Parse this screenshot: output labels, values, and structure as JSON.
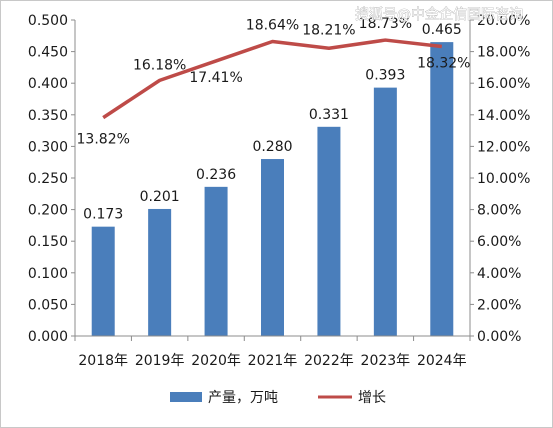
{
  "chart_data": {
    "type": "bar",
    "categories": [
      "2018年",
      "2019年",
      "2020年",
      "2021年",
      "2022年",
      "2023年",
      "2024年"
    ],
    "series": [
      {
        "name": "产量，万吨",
        "type": "bar",
        "axis": "left",
        "color": "#4a7ebb",
        "values": [
          0.173,
          0.201,
          0.236,
          0.28,
          0.331,
          0.393,
          0.465
        ],
        "labels": [
          "0.173",
          "0.201",
          "0.236",
          "0.280",
          "0.331",
          "0.393",
          "0.465"
        ]
      },
      {
        "name": "增长",
        "type": "line",
        "axis": "right",
        "color": "#be4b48",
        "values": [
          13.82,
          16.18,
          17.41,
          18.64,
          18.21,
          18.73,
          18.32
        ],
        "labels": [
          "13.82%",
          "16.18%",
          "17.41%",
          "18.64%",
          "18.21%",
          "18.73%",
          "18.32%"
        ]
      }
    ],
    "y_left": {
      "range": [
        0,
        0.5
      ],
      "ticks": [
        "0.000",
        "0.050",
        "0.100",
        "0.150",
        "0.200",
        "0.250",
        "0.300",
        "0.350",
        "0.400",
        "0.450",
        "0.500"
      ]
    },
    "y_right": {
      "range": [
        0,
        20
      ],
      "ticks": [
        "0.00%",
        "2.00%",
        "4.00%",
        "6.00%",
        "8.00%",
        "10.00%",
        "12.00%",
        "14.00%",
        "16.00%",
        "18.00%",
        "20.00%"
      ]
    },
    "grid": false,
    "legend_position": "bottom"
  },
  "watermark": "搜狐号@中金企信国际咨询"
}
